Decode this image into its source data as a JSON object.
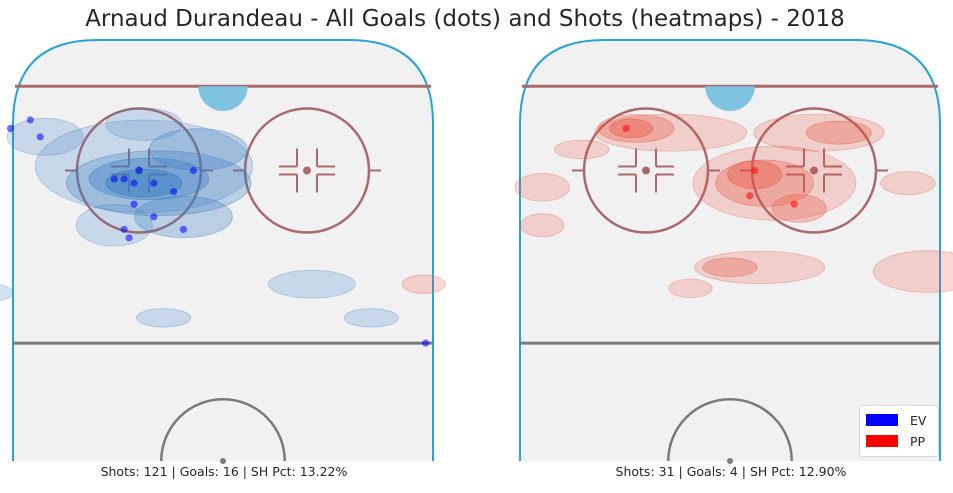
{
  "title": "Arnaud Durandeau - All Goals (dots) and Shots (heatmaps) - 2018",
  "colors": {
    "ev": "#0000ff",
    "pp": "#ff0000",
    "ev_heat": "#3a7fc2",
    "pp_heat": "#e8543e",
    "rink_fill": "#f1f1f2",
    "boards": "#27a4d6",
    "red_line": "#a86a6a",
    "center_line": "#7a7a7a",
    "crease": "#7ec3e0",
    "net": "#7ec3e0"
  },
  "legend": [
    {
      "label": "EV",
      "color": "#0000ff"
    },
    {
      "label": "PP",
      "color": "#ff0000"
    }
  ],
  "chart_data": [
    {
      "type": "scatter",
      "strength": "EV",
      "caption": "Shots: 121 | Goals: 16 | SH Pct: 13.22%",
      "shots": 121,
      "goals": 16,
      "sh_pct": "13.22%",
      "goal_points": [
        {
          "x": -43,
          "y": 79
        },
        {
          "x": -39,
          "y": 81
        },
        {
          "x": -37,
          "y": 77
        },
        {
          "x": -22,
          "y": 67
        },
        {
          "x": -20,
          "y": 67
        },
        {
          "x": -18,
          "y": 66
        },
        {
          "x": -17,
          "y": 69
        },
        {
          "x": -14,
          "y": 66
        },
        {
          "x": -10,
          "y": 64
        },
        {
          "x": -6,
          "y": 69
        },
        {
          "x": -18,
          "y": 61
        },
        {
          "x": -14,
          "y": 58
        },
        {
          "x": -20,
          "y": 55
        },
        {
          "x": -19,
          "y": 53
        },
        {
          "x": -8,
          "y": 55
        },
        {
          "x": 41,
          "y": 28
        }
      ],
      "heat_blobs": [
        {
          "x": -16,
          "y": 66,
          "rx": 14,
          "ry": 6,
          "level": 4
        },
        {
          "x": -15,
          "y": 67,
          "rx": 22,
          "ry": 9,
          "level": 3
        },
        {
          "x": -13,
          "y": 66,
          "rx": 34,
          "ry": 14,
          "level": 2
        },
        {
          "x": -16,
          "y": 70,
          "rx": 40,
          "ry": 20,
          "level": 1
        },
        {
          "x": -5,
          "y": 74,
          "rx": 18,
          "ry": 9,
          "level": 2
        },
        {
          "x": -36,
          "y": 77,
          "rx": 14,
          "ry": 8,
          "level": 1
        },
        {
          "x": -16,
          "y": 80,
          "rx": 14,
          "ry": 7,
          "level": 1
        },
        {
          "x": -8,
          "y": 58,
          "rx": 18,
          "ry": 9,
          "level": 2
        },
        {
          "x": -22,
          "y": 56,
          "rx": 14,
          "ry": 9,
          "level": 1
        },
        {
          "x": -70,
          "y": 68,
          "rx": 14,
          "ry": 5,
          "level": 1
        },
        {
          "x": -60,
          "y": 52,
          "rx": 10,
          "ry": 4,
          "level": 1
        },
        {
          "x": -82,
          "y": 48,
          "rx": 8,
          "ry": 3,
          "level": 1
        },
        {
          "x": -82,
          "y": 38,
          "rx": 12,
          "ry": 4,
          "level": 1
        },
        {
          "x": -48,
          "y": 40,
          "rx": 10,
          "ry": 4,
          "level": 1
        },
        {
          "x": -12,
          "y": 34,
          "rx": 10,
          "ry": 4,
          "level": 1
        },
        {
          "x": 18,
          "y": 42,
          "rx": 16,
          "ry": 6,
          "level": 1
        },
        {
          "x": -62,
          "y": 35,
          "rx": 8,
          "ry": 3,
          "level": 1
        },
        {
          "x": 30,
          "y": 34,
          "rx": 10,
          "ry": 4,
          "level": 1
        }
      ]
    },
    {
      "type": "scatter",
      "strength": "PP",
      "caption": "Shots: 31 | Goals: 4 | SH Pct: 12.90%",
      "shots": 31,
      "goals": 4,
      "sh_pct": "12.90%",
      "goal_points": [
        {
          "x": -21,
          "y": 79
        },
        {
          "x": 5,
          "y": 69
        },
        {
          "x": 4,
          "y": 63
        },
        {
          "x": 13,
          "y": 61
        }
      ],
      "heat_blobs": [
        {
          "x": -20,
          "y": 79,
          "rx": 8,
          "ry": 4,
          "level": 3
        },
        {
          "x": -19,
          "y": 79,
          "rx": 14,
          "ry": 6,
          "level": 2
        },
        {
          "x": -12,
          "y": 78,
          "rx": 28,
          "ry": 8,
          "level": 1
        },
        {
          "x": 5,
          "y": 68,
          "rx": 10,
          "ry": 6,
          "level": 3
        },
        {
          "x": 7,
          "y": 66,
          "rx": 18,
          "ry": 10,
          "level": 2
        },
        {
          "x": 9,
          "y": 66,
          "rx": 30,
          "ry": 16,
          "level": 1
        },
        {
          "x": 22,
          "y": 78,
          "rx": 12,
          "ry": 5,
          "level": 2
        },
        {
          "x": 18,
          "y": 78,
          "rx": 24,
          "ry": 8,
          "level": 1
        },
        {
          "x": 14,
          "y": 60,
          "rx": 10,
          "ry": 6,
          "level": 2
        },
        {
          "x": 0,
          "y": 46,
          "rx": 10,
          "ry": 4,
          "level": 2
        },
        {
          "x": 6,
          "y": 46,
          "rx": 24,
          "ry": 7,
          "level": 1
        },
        {
          "x": 40,
          "y": 45,
          "rx": 20,
          "ry": 9,
          "level": 1
        },
        {
          "x": -38,
          "y": 65,
          "rx": 10,
          "ry": 6,
          "level": 1
        },
        {
          "x": -38,
          "y": 56,
          "rx": 8,
          "ry": 5,
          "level": 1
        },
        {
          "x": -8,
          "y": 41,
          "rx": 8,
          "ry": 4,
          "level": 1
        },
        {
          "x": -62,
          "y": 42,
          "rx": 8,
          "ry": 4,
          "level": 1
        },
        {
          "x": 63,
          "y": 33,
          "rx": 4,
          "ry": 3,
          "level": 1
        },
        {
          "x": 36,
          "y": 66,
          "rx": 10,
          "ry": 5,
          "level": 1
        },
        {
          "x": -30,
          "y": 74,
          "rx": 10,
          "ry": 4,
          "level": 1
        }
      ]
    }
  ]
}
